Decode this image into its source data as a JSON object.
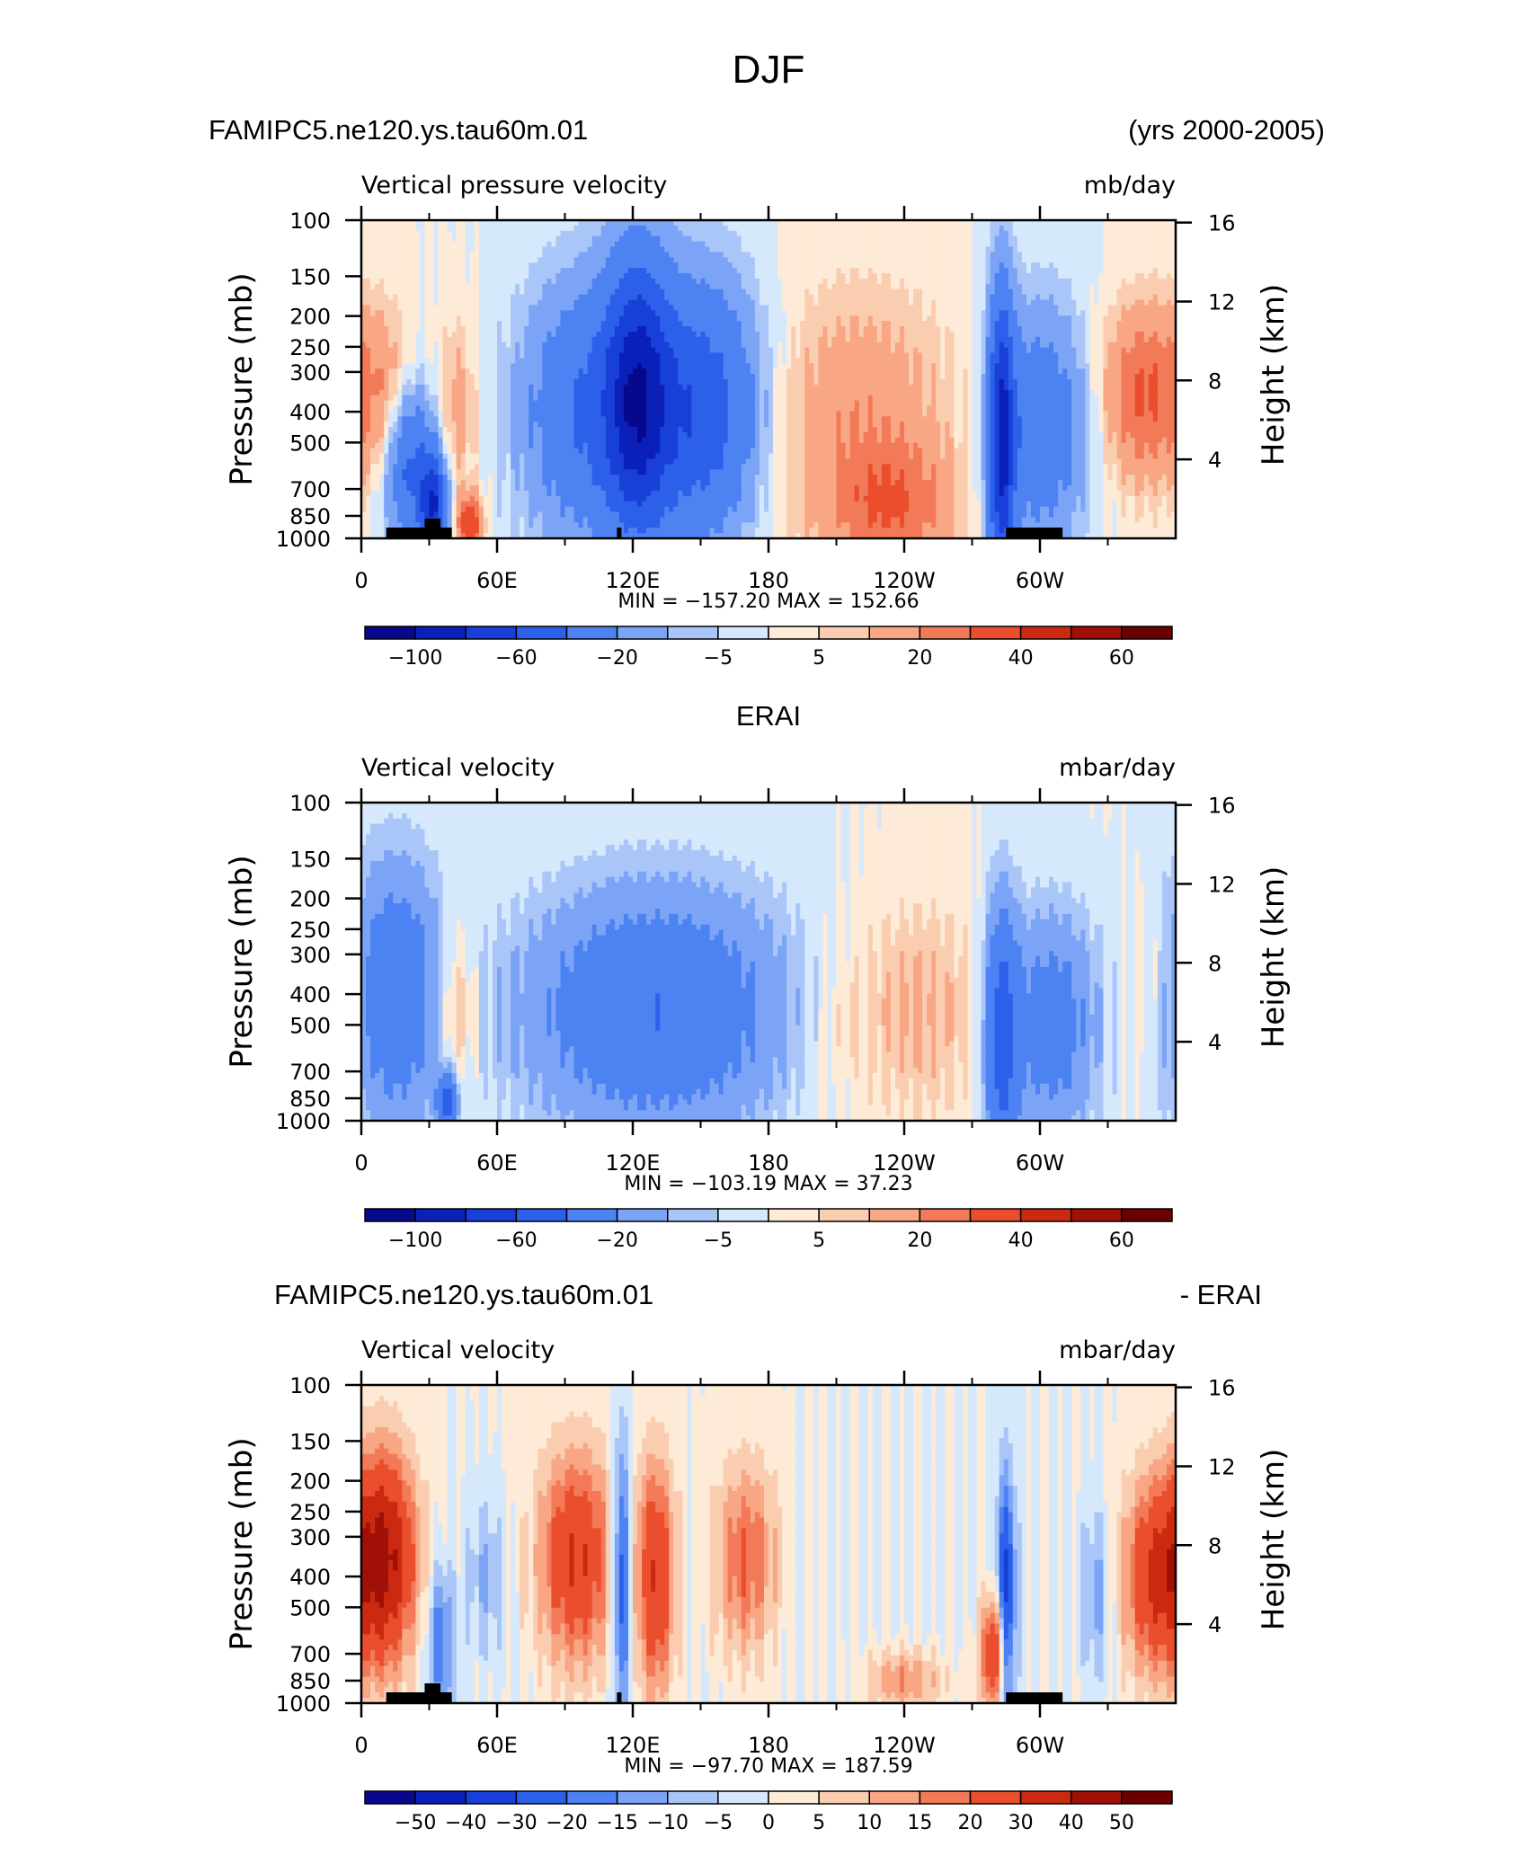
{
  "title": "DJF",
  "colormaps": {
    "main": [
      "#08088c",
      "#0b20b8",
      "#1840d8",
      "#2c60ea",
      "#4c82f2",
      "#7ca4f6",
      "#aac6f8",
      "#d6e8fc",
      "#fdebd7",
      "#fbcdb0",
      "#f8a684",
      "#f27a58",
      "#ea4e2c",
      "#cc2a10",
      "#a01006",
      "#6c0000"
    ],
    "diff": [
      "#08088c",
      "#0b20b8",
      "#1840d8",
      "#2c60ea",
      "#4c82f2",
      "#7ca4f6",
      "#aac6f8",
      "#d6e8fc",
      "#fdebd7",
      "#fbcdb0",
      "#f8a684",
      "#f27a58",
      "#ea4e2c",
      "#cc2a10",
      "#a01006",
      "#6c0000"
    ]
  },
  "chart_data": [
    {
      "type": "heatmap",
      "title": "FAMIPC5.ne120.ys.tau60m.01",
      "title_right": "(yrs 2000-2005)",
      "subtitle_left": "Vertical pressure velocity",
      "subtitle_right": "mb/day",
      "ylabel": "Pressure (mb)",
      "ylabel_right": "Height (km)",
      "x_ticks": [
        "0",
        "60E",
        "120E",
        "180",
        "120W",
        "60W"
      ],
      "y_ticks": [
        "100",
        "150",
        "200",
        "250",
        "300",
        "400",
        "500",
        "700",
        "850",
        "1000"
      ],
      "y_ticks_right": [
        "16",
        "12",
        "8",
        "4"
      ],
      "min_max": "MIN = −157.20   MAX =  152.66",
      "colorbar_labels": [
        "−100",
        "−60",
        "−20",
        "−5",
        "5",
        "20",
        "40",
        "60"
      ],
      "colormap": "main",
      "levels_count": 15,
      "terrain": true,
      "min": -157.2,
      "max": 152.66
    },
    {
      "type": "heatmap",
      "title": "ERAI",
      "subtitle_left": "Vertical velocity",
      "subtitle_right": "mbar/day",
      "ylabel": "Pressure (mb)",
      "ylabel_right": "Height (km)",
      "x_ticks": [
        "0",
        "60E",
        "120E",
        "180",
        "120W",
        "60W"
      ],
      "y_ticks": [
        "100",
        "150",
        "200",
        "250",
        "300",
        "400",
        "500",
        "700",
        "850",
        "1000"
      ],
      "y_ticks_right": [
        "16",
        "12",
        "8",
        "4"
      ],
      "min_max": "MIN = −103.19   MAX =   37.23",
      "colorbar_labels": [
        "−100",
        "−60",
        "−20",
        "−5",
        "5",
        "20",
        "40",
        "60"
      ],
      "colormap": "main",
      "levels_count": 15,
      "terrain": false,
      "min": -103.19,
      "max": 37.23
    },
    {
      "type": "heatmap",
      "title": "FAMIPC5.ne120.ys.tau60m.01",
      "title_right": "- ERAI",
      "subtitle_left": "Vertical velocity",
      "subtitle_right": "mbar/day",
      "ylabel": "Pressure (mb)",
      "ylabel_right": "Height (km)",
      "x_ticks": [
        "0",
        "60E",
        "120E",
        "180",
        "120W",
        "60W"
      ],
      "y_ticks": [
        "100",
        "150",
        "200",
        "250",
        "300",
        "400",
        "500",
        "700",
        "850",
        "1000"
      ],
      "y_ticks_right": [
        "16",
        "12",
        "8",
        "4"
      ],
      "min_max": "MIN =  −97.70   MAX =  187.59",
      "colorbar_labels": [
        "−50",
        "−40",
        "−30",
        "−20",
        "−15",
        "−10",
        "−5",
        "0",
        "5",
        "10",
        "15",
        "20",
        "30",
        "40",
        "50"
      ],
      "colormap": "diff",
      "levels_count": 15,
      "terrain": true,
      "min": -97.7,
      "max": 187.59
    }
  ]
}
